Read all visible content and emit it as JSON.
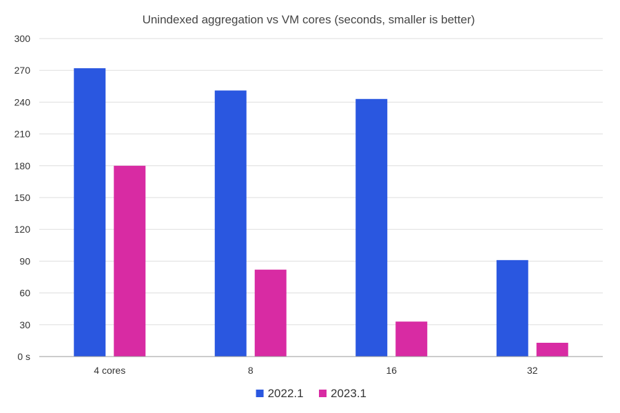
{
  "chart_data": {
    "type": "bar",
    "title": "Unindexed aggregation vs VM cores (seconds, smaller is better)",
    "categories": [
      "4 cores",
      "8",
      "16",
      "32"
    ],
    "series": [
      {
        "name": "2022.1",
        "color": "#2a57e0",
        "values": [
          272,
          251,
          243,
          91
        ]
      },
      {
        "name": "2023.1",
        "color": "#d82ba3",
        "values": [
          180,
          82,
          33,
          13
        ]
      }
    ],
    "y_ticks": [
      0,
      30,
      60,
      90,
      120,
      150,
      180,
      210,
      240,
      270,
      300
    ],
    "y_tick_labels": [
      "0 s",
      "30",
      "60",
      "90",
      "120",
      "150",
      "180",
      "210",
      "240",
      "270",
      "300"
    ],
    "ylim": [
      0,
      300
    ],
    "grid": true,
    "legend_position": "bottom-center"
  }
}
